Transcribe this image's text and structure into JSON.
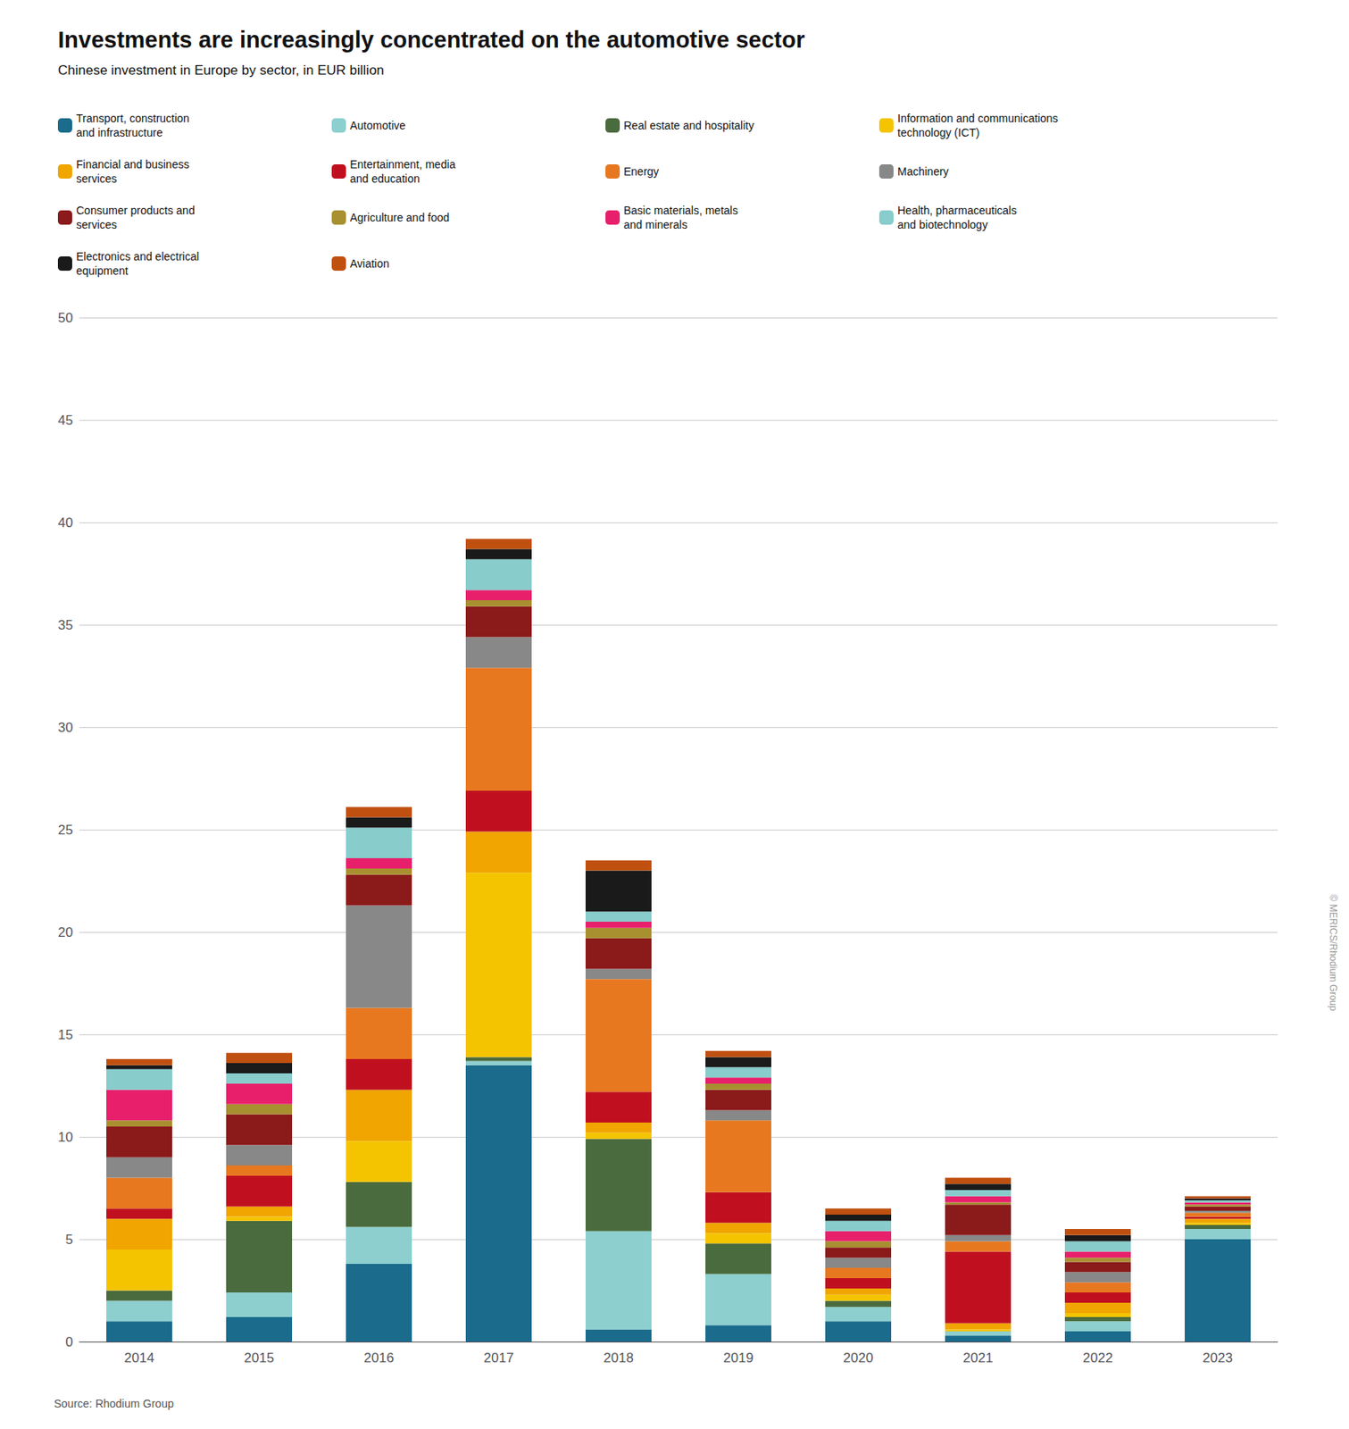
{
  "chart_data": {
    "type": "bar",
    "stacked": true,
    "title": "Investments are increasingly concentrated on the automotive sector",
    "subtitle": "Chinese investment in Europe by sector, in EUR billion",
    "annotations": [
      "Source: Rhodium Group",
      "© MERICS/Rhodium Group"
    ],
    "categories": [
      "2014",
      "2015",
      "2016",
      "2017",
      "2018",
      "2019",
      "2020",
      "2021",
      "2022",
      "2023"
    ],
    "series": [
      {
        "name": "Transport, construction\nand infrastructure",
        "color": "#1a6b8c",
        "values": [
          1.0,
          1.2,
          3.8,
          13.5,
          0.6,
          0.8,
          1.0,
          0.3,
          0.5,
          5.0
        ]
      },
      {
        "name": "Automotive",
        "color": "#8dcfcf",
        "values": [
          1.0,
          1.2,
          1.8,
          0.2,
          4.8,
          2.5,
          0.7,
          0.2,
          0.5,
          0.5
        ]
      },
      {
        "name": "Real estate and hospitality",
        "color": "#4a6b3e",
        "values": [
          0.5,
          3.5,
          2.2,
          0.2,
          4.5,
          1.5,
          0.3,
          0.0,
          0.2,
          0.2
        ]
      },
      {
        "name": "Information and communications\ntechnology (ICT)",
        "color": "#f5c400",
        "values": [
          2.0,
          0.2,
          2.0,
          9.0,
          0.3,
          0.5,
          0.3,
          0.1,
          0.2,
          0.1
        ]
      },
      {
        "name": "Financial and business\nservices",
        "color": "#f0a500",
        "values": [
          1.5,
          0.5,
          2.5,
          2.0,
          0.5,
          0.5,
          0.3,
          0.3,
          0.5,
          0.2
        ]
      },
      {
        "name": "Entertainment, media\nand education",
        "color": "#c01020",
        "values": [
          0.5,
          1.5,
          1.5,
          2.0,
          1.5,
          1.5,
          0.5,
          3.5,
          0.5,
          0.1
        ]
      },
      {
        "name": "Energy",
        "color": "#e87820",
        "values": [
          1.5,
          0.5,
          2.5,
          6.0,
          5.5,
          3.5,
          0.5,
          0.5,
          0.5,
          0.2
        ]
      },
      {
        "name": "Machinery",
        "color": "#888888",
        "values": [
          1.0,
          1.0,
          5.0,
          1.5,
          0.5,
          0.5,
          0.5,
          0.3,
          0.5,
          0.1
        ]
      },
      {
        "name": "Consumer products and\nservices",
        "color": "#8b1a1a",
        "values": [
          1.5,
          1.5,
          1.5,
          1.5,
          1.5,
          1.0,
          0.5,
          1.5,
          0.5,
          0.2
        ]
      },
      {
        "name": "Agriculture and food",
        "color": "#a89030",
        "values": [
          0.3,
          0.5,
          0.3,
          0.3,
          0.5,
          0.3,
          0.3,
          0.1,
          0.2,
          0.1
        ]
      },
      {
        "name": "Basic materials, metals\nand minerals",
        "color": "#e8206c",
        "values": [
          1.5,
          1.0,
          0.5,
          0.5,
          0.3,
          0.3,
          0.5,
          0.3,
          0.3,
          0.1
        ]
      },
      {
        "name": "Health, pharmaceuticals\nand biotechnology",
        "color": "#88cccc",
        "values": [
          1.0,
          0.5,
          1.5,
          1.5,
          0.5,
          0.5,
          0.5,
          0.3,
          0.5,
          0.1
        ]
      },
      {
        "name": "Electronics and electrical\nequipment",
        "color": "#1a1a1a",
        "values": [
          0.2,
          0.5,
          0.5,
          0.5,
          2.0,
          0.5,
          0.3,
          0.3,
          0.3,
          0.1
        ]
      },
      {
        "name": "Aviation",
        "color": "#c05010",
        "values": [
          0.3,
          0.5,
          0.5,
          0.5,
          0.5,
          0.3,
          0.3,
          0.3,
          0.3,
          0.1
        ]
      }
    ],
    "ylim": [
      0,
      50
    ],
    "yticks": [
      0,
      5,
      10,
      15,
      20,
      25,
      30,
      35,
      40,
      45,
      50
    ],
    "grid": true,
    "legend": "top"
  }
}
